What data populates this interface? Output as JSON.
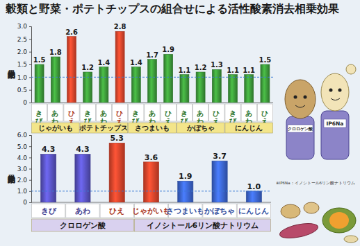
{
  "chart_data": [
    {
      "type": "bar",
      "title": "穀類と野菜・ポテトチップスの組合せによる活性酸素消去相乗効果",
      "y_label": "相乗効果比",
      "ylim": [
        0,
        3
      ],
      "yticks": [
        0,
        0.5,
        {
          "value": 1,
          "label": "1.0"
        },
        1.5,
        {
          "value": 2,
          "label": "2.0"
        },
        2.5,
        {
          "value": 3,
          "label": "3.0"
        }
      ],
      "reference_line": 1,
      "data_labels": true,
      "groups": [
        {
          "name": "じゃがいも",
          "categories": [
            "きび",
            "あわ",
            "ひえ"
          ],
          "values": [
            1.5,
            1.8,
            2.6
          ],
          "colors": [
            "#3d9b3a",
            "#3d9b3a",
            "#e2452c"
          ]
        },
        {
          "name": "ポテトチップス",
          "categories": [
            "きび",
            "あわ",
            "ひえ"
          ],
          "values": [
            1.2,
            1.4,
            2.8
          ],
          "colors": [
            "#3d9b3a",
            "#3d9b3a",
            "#e2452c"
          ]
        },
        {
          "name": "さつまいも",
          "categories": [
            "きび",
            "あわ",
            "ひえ"
          ],
          "values": [
            1.4,
            1.7,
            1.9
          ],
          "colors": [
            "#3d9b3a",
            "#3d9b3a",
            "#3d9b3a"
          ]
        },
        {
          "name": "かぼちゃ",
          "categories": [
            "きび",
            "あわ",
            "ひえ"
          ],
          "values": [
            1.1,
            1.2,
            1.3
          ],
          "colors": [
            "#3d9b3a",
            "#3d9b3a",
            "#3d9b3a"
          ]
        },
        {
          "name": "にんじん",
          "categories": [
            "きび",
            "あわ",
            "ひえ"
          ],
          "values": [
            1.1,
            1.1,
            1.5
          ],
          "colors": [
            "#3d9b3a",
            "#3d9b3a",
            "#3d9b3a"
          ]
        }
      ]
    },
    {
      "type": "bar",
      "y_label": "相乗効果比",
      "ylim": [
        0,
        6
      ],
      "yticks": [
        0,
        {
          "value": 1,
          "label": "1.0"
        },
        {
          "value": 2,
          "label": "2.0"
        },
        {
          "value": 3,
          "label": "3.0"
        },
        {
          "value": 4,
          "label": "4.0"
        },
        {
          "value": 5,
          "label": "5.0"
        },
        {
          "value": 6,
          "label": "6.0"
        }
      ],
      "reference_line": 1,
      "data_labels": true,
      "groups": [
        {
          "name": "クロロゲン酸",
          "categories": [
            "きび",
            "あわ",
            "ひえ"
          ],
          "values": [
            4.3,
            4.3,
            5.3
          ],
          "colors": [
            "#5a54c4",
            "#5a54c4",
            "#e2452c"
          ]
        },
        {
          "name": "イノシトール6リン酸ナトリウム",
          "categories": [
            "じゃがいも",
            "さつまいも",
            "かぼちゃ",
            "にんじん"
          ],
          "values": [
            3.6,
            1.9,
            3.7,
            1.0
          ],
          "value_labels": [
            "3.6",
            "1.9",
            "3.7",
            "1.0"
          ],
          "colors": [
            "#e2452c",
            "#3c66d4",
            "#3c66d4",
            "#3c66d4"
          ]
        }
      ],
      "annotations": [
        "クロロゲン酸",
        "IP6Na",
        "※IP6Na：イノシトール6リン酸ナトリウム"
      ]
    }
  ]
}
